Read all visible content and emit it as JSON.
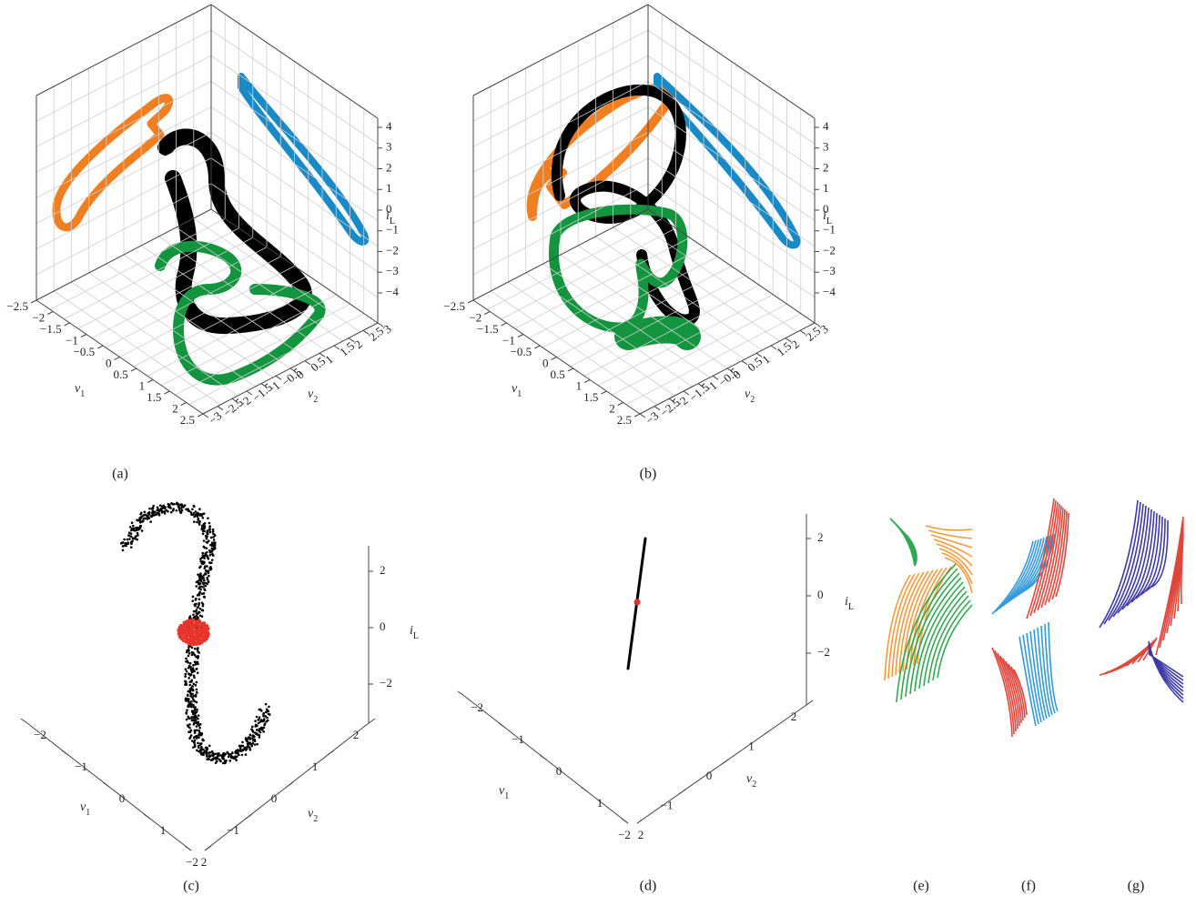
{
  "figure": {
    "panels": [
      {
        "caption": "(a)",
        "v1": {
          "name": "ν",
          "sub": "1",
          "ticks": [
            "−2.5",
            "−2",
            "−1.5",
            "−1",
            "−0.5",
            "0",
            "0.5",
            "1",
            "1.5",
            "2",
            "2.5"
          ]
        },
        "v2": {
          "name": "ν",
          "sub": "2",
          "ticks": [
            "3",
            "2.5",
            "2",
            "1.5",
            "1",
            "0.5",
            "0",
            "−0.5",
            "−1",
            "−1.5",
            "−2",
            "−2.5",
            "−3"
          ]
        },
        "iL": {
          "name": "i",
          "sub": "L",
          "ticks": [
            "4",
            "3",
            "2",
            "1",
            "0",
            "−1",
            "−2",
            "−3",
            "−4"
          ]
        }
      },
      {
        "caption": "(b)",
        "v1": {
          "name": "ν",
          "sub": "1",
          "ticks": [
            "−2.5",
            "−2",
            "−1.5",
            "−1",
            "−0.5",
            "0",
            "0.5",
            "1",
            "1.5",
            "2",
            "2.5"
          ]
        },
        "v2": {
          "name": "ν",
          "sub": "2",
          "ticks": [
            "3",
            "2.5",
            "2",
            "1.5",
            "1",
            "0.5",
            "0",
            "−0.5",
            "−1",
            "−1.5",
            "−2",
            "−2.5",
            "−3"
          ]
        },
        "iL": {
          "name": "i",
          "sub": "L",
          "ticks": [
            "4",
            "3",
            "2",
            "1",
            "0",
            "−1",
            "−2",
            "−3",
            "−4"
          ]
        }
      },
      {
        "caption": "(c)",
        "v1": {
          "name": "ν",
          "sub": "1",
          "ticks": [
            "−2",
            "−1",
            "0",
            "1",
            "2"
          ]
        },
        "v2": {
          "name": "ν",
          "sub": "2",
          "ticks": [
            "2",
            "1",
            "0",
            "−1",
            "−2"
          ]
        },
        "iL": {
          "name": "i",
          "sub": "L",
          "ticks": [
            "2",
            "0",
            "−2"
          ]
        }
      },
      {
        "caption": "(d)",
        "v1": {
          "name": "ν",
          "sub": "1",
          "ticks": [
            "−2",
            "−1",
            "0",
            "1",
            "2"
          ]
        },
        "v2": {
          "name": "ν",
          "sub": "2",
          "ticks": [
            "2",
            "1",
            "0",
            "−1",
            "−2"
          ]
        },
        "iL": {
          "name": "i",
          "sub": "L",
          "ticks": [
            "2",
            "0",
            "−2"
          ]
        }
      },
      {
        "caption": "(e)"
      },
      {
        "caption": "(f)"
      },
      {
        "caption": "(g)"
      }
    ]
  }
}
